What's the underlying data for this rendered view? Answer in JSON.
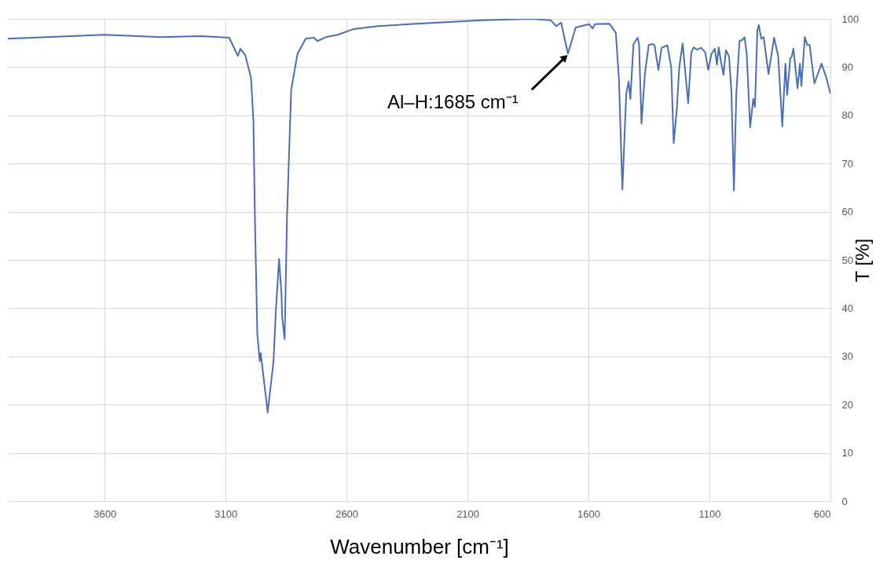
{
  "chart_data": {
    "type": "line",
    "xlabel": "Wavenumber [cm⁻¹]",
    "ylabel": "T [%]",
    "xlim": [
      4000,
      600
    ],
    "xticks": [
      {
        "value": 3600,
        "label": "3600"
      },
      {
        "value": 3100,
        "label": "3100"
      },
      {
        "value": 2600,
        "label": "2600"
      },
      {
        "value": 2100,
        "label": "2100"
      },
      {
        "value": 1600,
        "label": "1600"
      },
      {
        "value": 1100,
        "label": "1100"
      },
      {
        "value": 600,
        "label": "600"
      }
    ],
    "ylim": [
      0,
      100
    ],
    "yticks": [
      0,
      10,
      20,
      30,
      40,
      50,
      60,
      70,
      80,
      90,
      100
    ],
    "grid": true,
    "marker": "none",
    "line_style": "solid",
    "annotations": [
      {
        "text": "Al–H:1685 cm⁻¹",
        "x": 1685,
        "y": 92.8
      }
    ],
    "series": [
      {
        "color": "#4a6fb5",
        "x": [
          4000,
          3600,
          3367,
          3201,
          3085,
          3049,
          3039,
          3019,
          2995,
          2985,
          2979,
          2969,
          2959,
          2955,
          2949,
          2926,
          2902,
          2892,
          2879,
          2869,
          2866,
          2856,
          2846,
          2829,
          2803,
          2769,
          2736,
          2720,
          2686,
          2636,
          2570,
          2470,
          2238,
          2039,
          1839,
          1756,
          1733,
          1713,
          1685,
          1653,
          1597,
          1583,
          1573,
          1514,
          1487,
          1474,
          1460,
          1444,
          1434,
          1427,
          1414,
          1397,
          1391,
          1381,
          1367,
          1351,
          1334,
          1327,
          1311,
          1298,
          1274,
          1258,
          1248,
          1235,
          1225,
          1211,
          1188,
          1175,
          1165,
          1152,
          1135,
          1118,
          1105,
          1092,
          1078,
          1069,
          1062,
          1052,
          1042,
          1032,
          1019,
          1009,
          999,
          989,
          976,
          965,
          955,
          946,
          932,
          919,
          912,
          902,
          896,
          886,
          876,
          856,
          833,
          816,
          799,
          786,
          779,
          766,
          760,
          753,
          736,
          726,
          720,
          706,
          696,
          686,
          676,
          666,
          637,
          617,
          600
        ],
        "values": [
          95.9,
          96.7,
          96.2,
          96.4,
          96.1,
          92.3,
          93.8,
          92.5,
          87.8,
          78.8,
          59.2,
          34.7,
          29.0,
          30.7,
          28.2,
          18.4,
          29.0,
          39.6,
          50.2,
          42.9,
          38.0,
          33.6,
          59.2,
          85.3,
          92.7,
          95.9,
          96.1,
          95.4,
          96.2,
          96.7,
          97.9,
          98.5,
          99.2,
          99.7,
          100,
          99.7,
          98.5,
          99.2,
          92.8,
          98.2,
          98.9,
          98.0,
          98.9,
          99.0,
          97.1,
          87.3,
          64.6,
          84.5,
          87.0,
          83.4,
          94.8,
          96.1,
          94.8,
          78.3,
          88.6,
          94.6,
          94.8,
          94.5,
          89.4,
          94.0,
          94.5,
          89.9,
          74.2,
          81.2,
          89.9,
          94.9,
          82.5,
          93.1,
          94.1,
          93.6,
          94.0,
          93.1,
          89.4,
          92.7,
          93.8,
          90.5,
          94.1,
          91.0,
          88.4,
          93.5,
          92.2,
          84.5,
          64.4,
          84.5,
          95.4,
          95.6,
          96.2,
          92.7,
          77.5,
          83.4,
          81.7,
          97.6,
          98.7,
          95.9,
          96.2,
          88.6,
          96.1,
          92.3,
          77.7,
          90.7,
          84.2,
          91.8,
          92.2,
          93.8,
          85.6,
          90.7,
          86.1,
          96.2,
          94.6,
          94.6,
          90.5,
          86.6,
          90.7,
          87.8,
          84.5
        ]
      }
    ]
  }
}
